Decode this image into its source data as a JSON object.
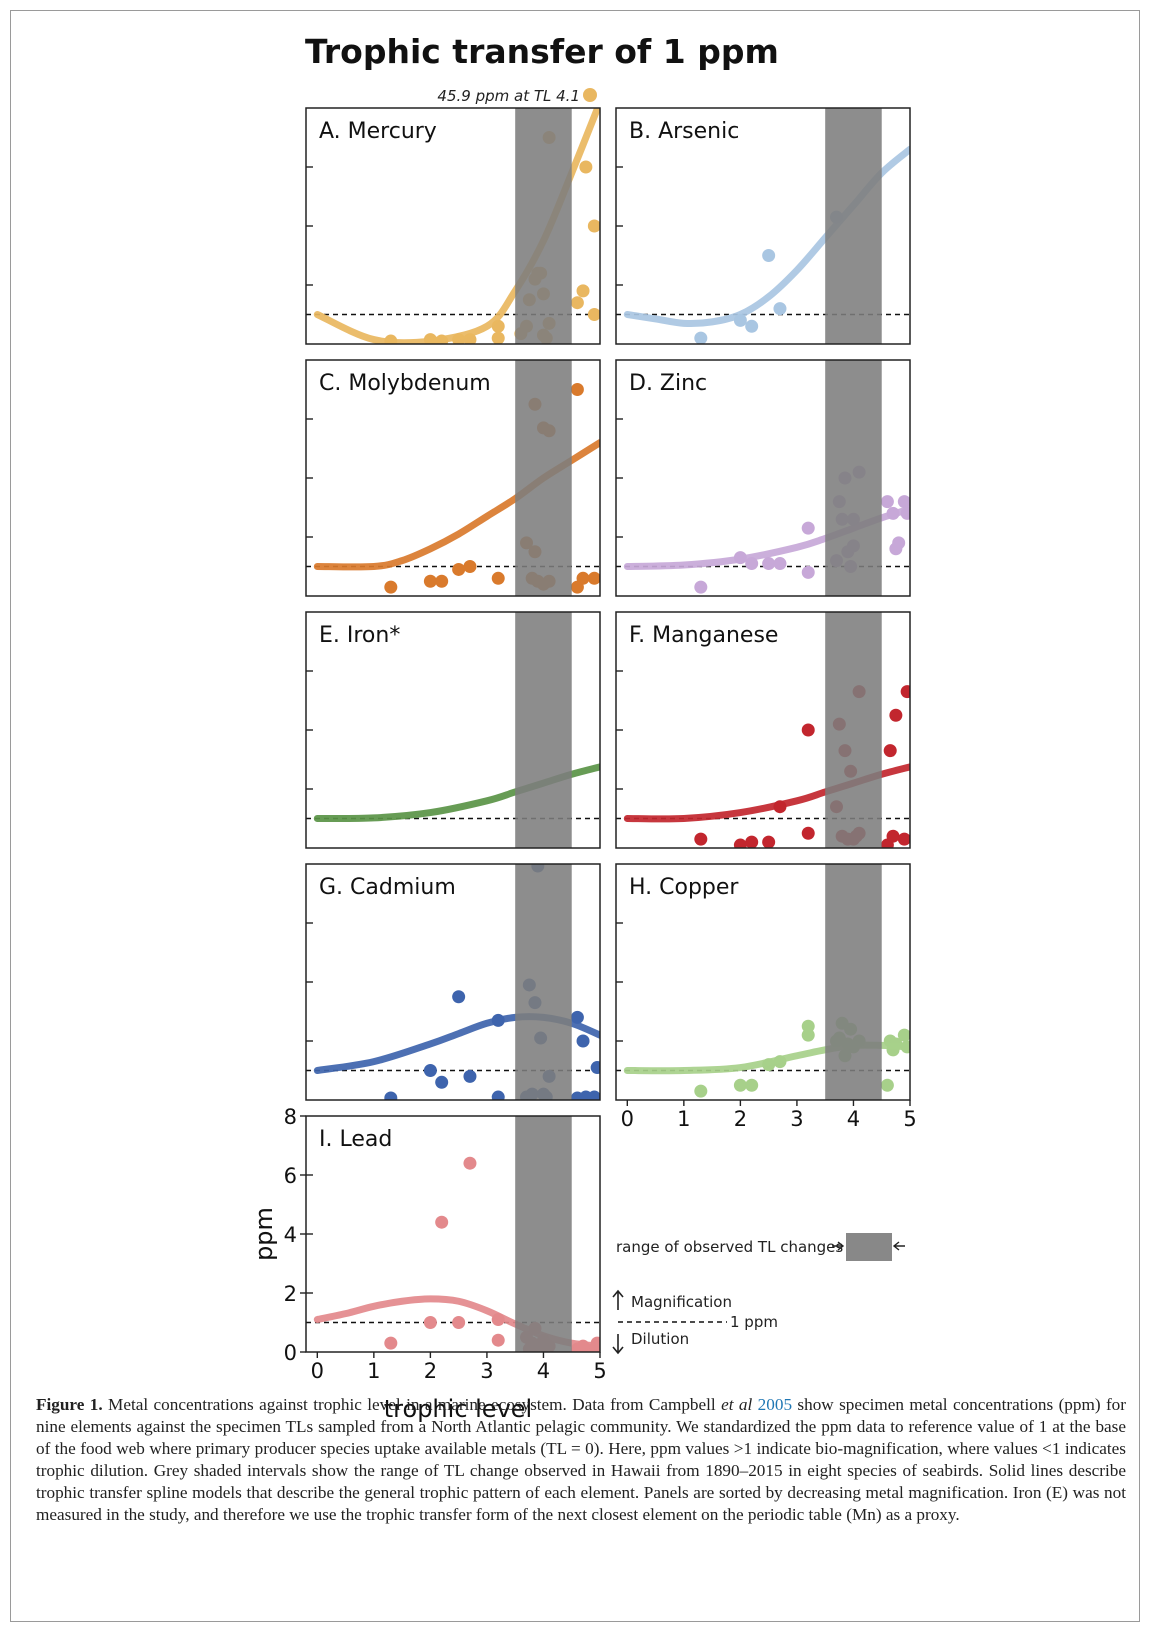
{
  "figure": {
    "title": "Trophic transfer of 1 ppm",
    "outlier_note": "45.9 ppm at TL 4.1",
    "xlabel": "trophic level",
    "ylabel": "ppm",
    "legend": {
      "range_label": "range of observed TL changes",
      "magnification": "Magnification",
      "one_ppm": "1 ppm",
      "dilution": "Dilution"
    }
  },
  "caption": {
    "label": "Figure 1.",
    "part1": " Metal concentrations against trophic level in a marine ecosystem. Data from Campbell ",
    "etal": "et al",
    "year": "2005",
    "part2": " show specimen metal concentrations (ppm) for nine elements against the specimen TLs sampled from a North Atlantic pelagic community. We standardized the ppm data to reference value of 1 at the base of the food web where primary producer species uptake available metals (TL = 0). Here, ppm values >1 indicate bio-magnification, where values <1 indicates trophic dilution. Grey shaded intervals show the range of TL change observed in Hawaii from 1890–2015 in eight species of seabirds. Solid lines describe trophic transfer spline models that describe the general trophic pattern of each element. Panels are sorted by decreasing metal magnification. Iron (E) was not measured in the study, and therefore we use the trophic transfer form of the next closest element on the periodic table (Mn) as a proxy."
  },
  "chart_data": [
    {
      "type": "scatter",
      "title": "A. Mercury",
      "color": "#e9b760",
      "xlim": [
        -0.2,
        5
      ],
      "ylim": [
        0,
        8
      ],
      "reference_line": 1,
      "shade": [
        3.5,
        4.5
      ],
      "curve": {
        "x": [
          0,
          1,
          2,
          3,
          3.5,
          4,
          4.5,
          5
        ],
        "y": [
          1.0,
          0.15,
          0.1,
          0.6,
          1.8,
          3.5,
          5.8,
          8.2
        ]
      },
      "points": [
        [
          1.3,
          0.1
        ],
        [
          2.0,
          0.15
        ],
        [
          2.2,
          0.1
        ],
        [
          2.5,
          0.15
        ],
        [
          2.7,
          0.15
        ],
        [
          3.2,
          0.2
        ],
        [
          3.2,
          0.6
        ],
        [
          3.6,
          0.35
        ],
        [
          3.7,
          0.6
        ],
        [
          3.75,
          1.5
        ],
        [
          3.85,
          2.2
        ],
        [
          3.9,
          2.4
        ],
        [
          3.95,
          2.4
        ],
        [
          4.0,
          1.7
        ],
        [
          4.1,
          7.0
        ],
        [
          4.0,
          0.3
        ],
        [
          4.05,
          0.2
        ],
        [
          4.1,
          0.7
        ],
        [
          4.6,
          1.4
        ],
        [
          4.7,
          1.8
        ],
        [
          4.75,
          6.0
        ],
        [
          4.9,
          4.0
        ],
        [
          4.9,
          1.0
        ]
      ]
    },
    {
      "type": "scatter",
      "title": "B. Arsenic",
      "color": "#a9c6e2",
      "xlim": [
        -0.2,
        5
      ],
      "ylim": [
        0,
        8
      ],
      "reference_line": 1,
      "shade": [
        3.5,
        4.5
      ],
      "curve": {
        "x": [
          0,
          0.5,
          1,
          1.5,
          2,
          2.5,
          3,
          3.5,
          4,
          4.5,
          5
        ],
        "y": [
          1.0,
          0.85,
          0.7,
          0.75,
          1.0,
          1.6,
          2.5,
          3.6,
          4.7,
          5.8,
          6.6
        ]
      },
      "points": [
        [
          1.3,
          0.2
        ],
        [
          2.0,
          0.8
        ],
        [
          2.2,
          0.6
        ],
        [
          2.5,
          3.0
        ],
        [
          2.7,
          1.2
        ],
        [
          3.7,
          4.3
        ]
      ]
    },
    {
      "type": "scatter",
      "title": "C. Molybdenum",
      "color": "#d97a2c",
      "xlim": [
        -0.2,
        5
      ],
      "ylim": [
        0,
        8
      ],
      "reference_line": 1,
      "shade": [
        3.5,
        4.5
      ],
      "curve": {
        "x": [
          0,
          1,
          1.5,
          2,
          2.5,
          3,
          3.5,
          4,
          4.5,
          5
        ],
        "y": [
          1.0,
          1.0,
          1.2,
          1.6,
          2.1,
          2.7,
          3.3,
          4.0,
          4.6,
          5.2
        ]
      },
      "points": [
        [
          1.3,
          0.3
        ],
        [
          2.0,
          0.5
        ],
        [
          2.2,
          0.5
        ],
        [
          2.5,
          0.9
        ],
        [
          2.7,
          1.0
        ],
        [
          3.2,
          0.6
        ],
        [
          3.7,
          1.8
        ],
        [
          3.8,
          0.6
        ],
        [
          3.85,
          1.5
        ],
        [
          3.9,
          0.5
        ],
        [
          4.0,
          0.4
        ],
        [
          4.1,
          0.5
        ],
        [
          3.85,
          6.5
        ],
        [
          4.0,
          5.7
        ],
        [
          4.1,
          5.6
        ],
        [
          4.6,
          7.0
        ],
        [
          4.6,
          0.3
        ],
        [
          4.7,
          0.6
        ],
        [
          4.9,
          0.6
        ]
      ]
    },
    {
      "type": "scatter",
      "title": "D. Zinc",
      "color": "#c7a8d8",
      "xlim": [
        -0.2,
        5
      ],
      "ylim": [
        0,
        8
      ],
      "reference_line": 1,
      "shade": [
        3.5,
        4.5
      ],
      "curve": {
        "x": [
          0,
          1,
          2,
          3,
          3.5,
          4,
          4.5,
          5
        ],
        "y": [
          1.0,
          1.05,
          1.25,
          1.65,
          1.95,
          2.3,
          2.65,
          2.95
        ]
      },
      "points": [
        [
          1.3,
          0.3
        ],
        [
          2.0,
          1.3
        ],
        [
          2.2,
          1.1
        ],
        [
          2.5,
          1.1
        ],
        [
          2.7,
          1.1
        ],
        [
          3.2,
          0.8
        ],
        [
          3.2,
          2.3
        ],
        [
          3.7,
          1.2
        ],
        [
          3.75,
          3.2
        ],
        [
          3.8,
          2.6
        ],
        [
          3.85,
          4.0
        ],
        [
          3.9,
          1.5
        ],
        [
          3.95,
          1.0
        ],
        [
          4.0,
          1.7
        ],
        [
          4.1,
          4.2
        ],
        [
          4.0,
          2.6
        ],
        [
          4.6,
          3.2
        ],
        [
          4.7,
          2.8
        ],
        [
          4.75,
          1.6
        ],
        [
          4.8,
          1.8
        ],
        [
          4.9,
          3.2
        ],
        [
          4.95,
          2.8
        ]
      ]
    },
    {
      "type": "line",
      "title": "E. Iron*",
      "color": "#5a9446",
      "xlim": [
        -0.2,
        5
      ],
      "ylim": [
        0,
        8
      ],
      "reference_line": 1,
      "shade": [
        3.5,
        4.5
      ],
      "curve": {
        "x": [
          0,
          1,
          2,
          3,
          3.5,
          4,
          4.5,
          5
        ],
        "y": [
          1.0,
          1.02,
          1.2,
          1.6,
          1.9,
          2.2,
          2.5,
          2.75
        ]
      }
    },
    {
      "type": "scatter",
      "title": "F. Manganese",
      "color": "#c2262e",
      "xlim": [
        -0.2,
        5
      ],
      "ylim": [
        0,
        8
      ],
      "reference_line": 1,
      "shade": [
        3.5,
        4.5
      ],
      "curve": {
        "x": [
          0,
          1,
          2,
          3,
          3.5,
          4,
          4.5,
          5
        ],
        "y": [
          1.0,
          1.0,
          1.2,
          1.6,
          1.9,
          2.2,
          2.5,
          2.75
        ]
      },
      "points": [
        [
          1.3,
          0.3
        ],
        [
          2.0,
          0.1
        ],
        [
          2.2,
          0.2
        ],
        [
          2.5,
          0.2
        ],
        [
          2.7,
          1.4
        ],
        [
          3.2,
          0.5
        ],
        [
          3.2,
          4.0
        ],
        [
          3.7,
          1.4
        ],
        [
          3.75,
          4.2
        ],
        [
          3.8,
          0.4
        ],
        [
          3.85,
          3.3
        ],
        [
          3.9,
          0.3
        ],
        [
          3.95,
          2.6
        ],
        [
          4.0,
          0.3
        ],
        [
          4.1,
          5.3
        ],
        [
          4.05,
          0.4
        ],
        [
          4.1,
          0.5
        ],
        [
          4.6,
          0.1
        ],
        [
          4.65,
          3.3
        ],
        [
          4.7,
          0.4
        ],
        [
          4.75,
          4.5
        ],
        [
          4.9,
          0.3
        ],
        [
          4.95,
          5.3
        ]
      ]
    },
    {
      "type": "scatter",
      "title": "G. Cadmium",
      "color": "#3e64ad",
      "xlim": [
        -0.2,
        5
      ],
      "ylim": [
        0,
        8
      ],
      "reference_line": 1,
      "shade": [
        3.5,
        4.5
      ],
      "curve": {
        "x": [
          0,
          1,
          2,
          2.5,
          3,
          3.5,
          4,
          4.5,
          5
        ],
        "y": [
          1.0,
          1.3,
          1.9,
          2.25,
          2.6,
          2.8,
          2.8,
          2.6,
          2.2
        ]
      },
      "points": [
        [
          1.3,
          0.0
        ],
        [
          2.0,
          1.0
        ],
        [
          2.2,
          0.6
        ],
        [
          2.5,
          3.5
        ],
        [
          2.7,
          0.8
        ],
        [
          3.2,
          2.7
        ],
        [
          3.2,
          0.1
        ],
        [
          3.7,
          0.1
        ],
        [
          3.75,
          3.9
        ],
        [
          3.8,
          0.2
        ],
        [
          3.85,
          3.3
        ],
        [
          3.9,
          8.0
        ],
        [
          3.95,
          2.1
        ],
        [
          4.0,
          0.2
        ],
        [
          4.05,
          0.1
        ],
        [
          4.1,
          0.8
        ],
        [
          4.6,
          2.8
        ],
        [
          4.6,
          0.0
        ],
        [
          4.7,
          2.0
        ],
        [
          4.75,
          0.1
        ],
        [
          4.9,
          0.1
        ],
        [
          4.95,
          1.1
        ]
      ]
    },
    {
      "type": "scatter",
      "title": "H. Copper",
      "color": "#a7d08a",
      "xlim": [
        -0.2,
        5
      ],
      "ylim": [
        0,
        8
      ],
      "reference_line": 1,
      "shade": [
        3.5,
        4.5
      ],
      "curve": {
        "x": [
          0,
          1,
          2,
          3,
          3.5,
          4,
          4.5,
          5
        ],
        "y": [
          1.0,
          1.0,
          1.1,
          1.5,
          1.7,
          1.85,
          1.85,
          1.8
        ]
      },
      "points": [
        [
          1.3,
          0.3
        ],
        [
          2.0,
          0.5
        ],
        [
          2.2,
          0.5
        ],
        [
          2.5,
          1.2
        ],
        [
          2.7,
          1.3
        ],
        [
          3.2,
          2.2
        ],
        [
          3.2,
          2.5
        ],
        [
          3.7,
          2.0
        ],
        [
          3.75,
          2.1
        ],
        [
          3.8,
          2.6
        ],
        [
          3.85,
          1.5
        ],
        [
          3.9,
          1.9
        ],
        [
          3.95,
          2.4
        ],
        [
          4.0,
          1.8
        ],
        [
          4.1,
          2.0
        ],
        [
          4.6,
          0.5
        ],
        [
          4.65,
          2.0
        ],
        [
          4.7,
          1.7
        ],
        [
          4.75,
          1.9
        ],
        [
          4.9,
          2.2
        ],
        [
          4.95,
          1.8
        ]
      ]
    },
    {
      "type": "scatter",
      "title": "I. Lead",
      "color": "#e3898c",
      "xlim": [
        -0.2,
        5
      ],
      "ylim": [
        0,
        8
      ],
      "reference_line": 1,
      "shade": [
        3.5,
        4.5
      ],
      "xticks": [
        0,
        1,
        2,
        3,
        4,
        5
      ],
      "yticks": [
        0,
        2,
        4,
        6,
        8
      ],
      "curve": {
        "x": [
          0,
          0.5,
          1,
          1.5,
          2,
          2.5,
          3,
          3.5,
          4,
          4.5,
          5
        ],
        "y": [
          1.1,
          1.3,
          1.55,
          1.72,
          1.8,
          1.72,
          1.4,
          0.95,
          0.55,
          0.3,
          0.2
        ]
      },
      "points": [
        [
          1.3,
          0.3
        ],
        [
          2.0,
          1.0
        ],
        [
          2.2,
          4.4
        ],
        [
          2.5,
          1.0
        ],
        [
          2.7,
          6.4
        ],
        [
          3.2,
          0.4
        ],
        [
          3.2,
          1.1
        ],
        [
          3.7,
          0.5
        ],
        [
          3.75,
          0.1
        ],
        [
          3.8,
          0.3
        ],
        [
          3.85,
          0.8
        ],
        [
          3.9,
          0.2
        ],
        [
          4.0,
          0.4
        ],
        [
          4.05,
          0.1
        ],
        [
          4.1,
          0.2
        ],
        [
          4.6,
          0.1
        ],
        [
          4.7,
          0.2
        ],
        [
          4.75,
          0.1
        ],
        [
          4.9,
          0.1
        ],
        [
          4.95,
          0.3
        ]
      ]
    }
  ]
}
